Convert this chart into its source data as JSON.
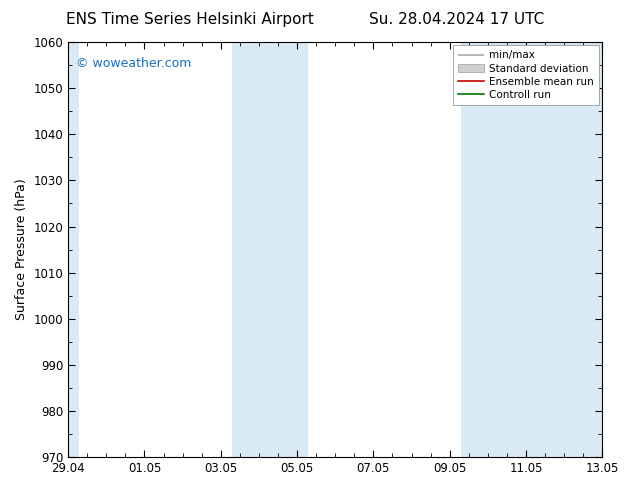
{
  "title_left": "ENS Time Series Helsinki Airport",
  "title_right": "Su. 28.04.2024 17 UTC",
  "ylabel": "Surface Pressure (hPa)",
  "ylim": [
    970,
    1060
  ],
  "yticks": [
    970,
    980,
    990,
    1000,
    1010,
    1020,
    1030,
    1040,
    1050,
    1060
  ],
  "xtick_labels": [
    "29.04",
    "01.05",
    "03.05",
    "05.05",
    "07.05",
    "09.05",
    "11.05",
    "13.05"
  ],
  "xtick_positions": [
    0,
    2,
    4,
    6,
    8,
    10,
    12,
    14
  ],
  "xlim": [
    0,
    14
  ],
  "shaded_bands": [
    {
      "x_start": 0.0,
      "x_end": 0.29,
      "color": "#daeaf5"
    },
    {
      "x_start": 4.29,
      "x_end": 6.29,
      "color": "#daeaf5"
    },
    {
      "x_start": 10.29,
      "x_end": 14.0,
      "color": "#daeaf5"
    }
  ],
  "watermark": "© woweather.com",
  "watermark_color": "#1a6fbf",
  "legend_labels": [
    "min/max",
    "Standard deviation",
    "Ensemble mean run",
    "Controll run"
  ],
  "legend_colors": [
    "#aaaaaa",
    "#cccccc",
    "#cc0000",
    "#007700"
  ],
  "bg_color": "#ffffff",
  "plot_bg_color": "#ffffff",
  "spine_color": "#000000",
  "tick_color": "#000000",
  "title_fontsize": 11,
  "axis_label_fontsize": 9,
  "tick_fontsize": 8.5,
  "watermark_fontsize": 9
}
